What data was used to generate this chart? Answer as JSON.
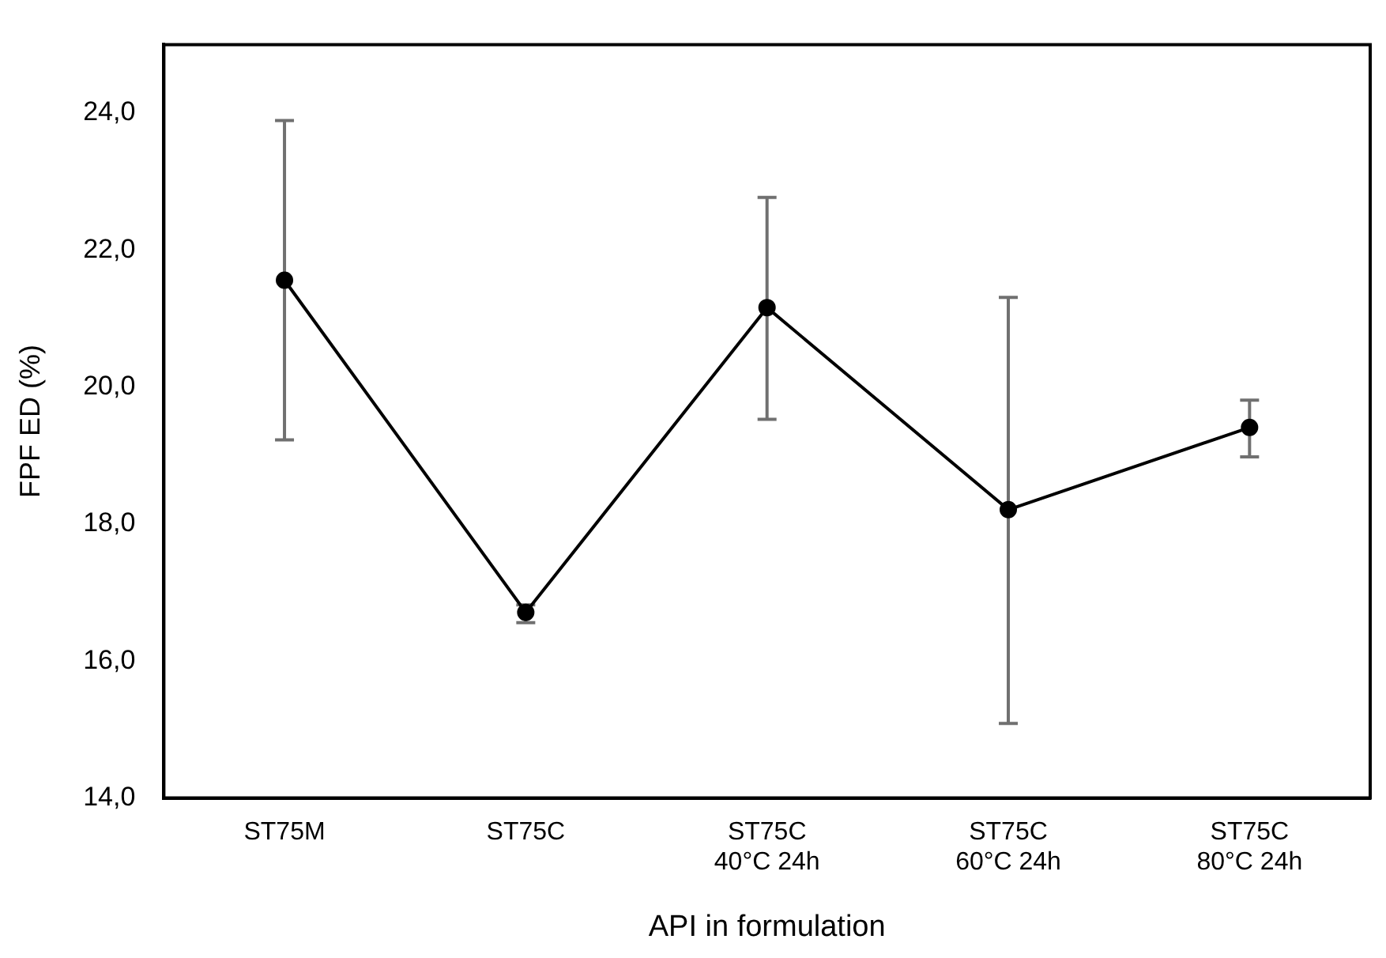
{
  "chart_data": {
    "type": "line",
    "xlabel": "API in formulation",
    "ylabel": "FPF ED (%)",
    "categories": [
      "ST75M",
      "ST75C",
      "ST75C\n40°C 24h",
      "ST75C\n60°C 24h",
      "ST75C\n80°C 24h"
    ],
    "series": [
      {
        "color": "#000000",
        "values": [
          21.56,
          16.71,
          21.16,
          18.21,
          19.41
        ],
        "errors": [
          [
            19.23,
            23.89
          ],
          [
            16.56,
            16.82
          ],
          [
            19.53,
            22.77
          ],
          [
            15.09,
            21.31
          ],
          [
            18.98,
            19.81
          ]
        ]
      }
    ],
    "ylim": [
      14,
      25
    ],
    "yticks": [
      {
        "value": 14,
        "label": "14,0"
      },
      {
        "value": 16,
        "label": "16,0"
      },
      {
        "value": 18,
        "label": "18,0"
      },
      {
        "value": 20,
        "label": "20,0"
      },
      {
        "value": 22,
        "label": "22,0"
      },
      {
        "value": 24,
        "label": "24,0"
      }
    ],
    "grid": false,
    "legend": false,
    "marker": "circle",
    "line_style": "solid"
  }
}
